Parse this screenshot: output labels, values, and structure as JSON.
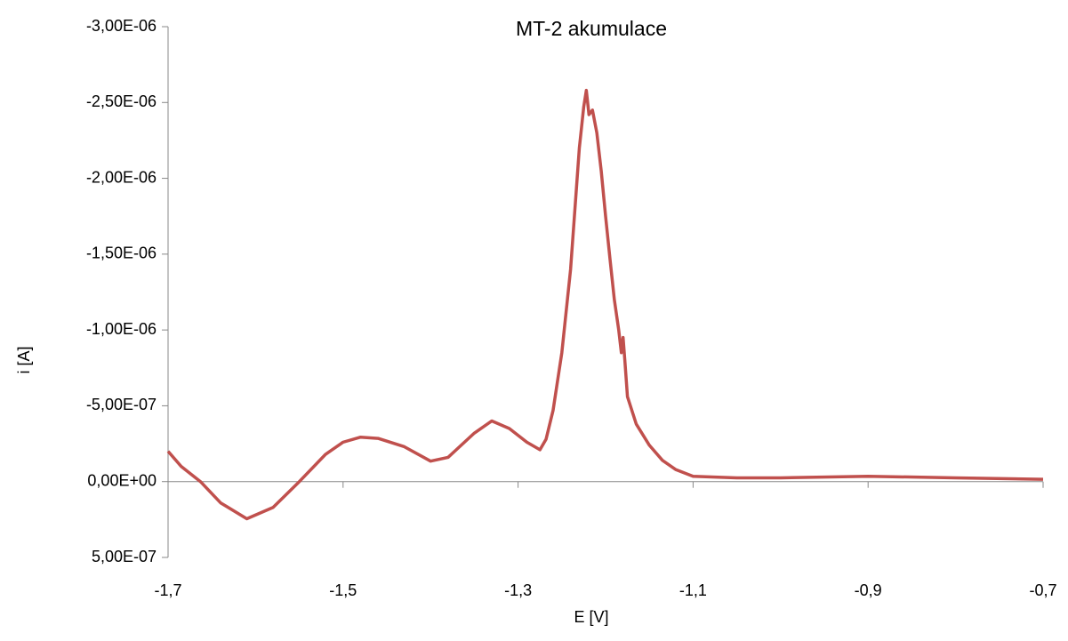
{
  "chart_data": {
    "type": "line",
    "title": "MT-2 akumulace",
    "x_label": "E [V]",
    "y_label": "i [A]",
    "x": [
      -1.7,
      -1.685,
      -1.663,
      -1.64,
      -1.61,
      -1.58,
      -1.55,
      -1.52,
      -1.5,
      -1.48,
      -1.46,
      -1.43,
      -1.4,
      -1.38,
      -1.35,
      -1.33,
      -1.31,
      -1.29,
      -1.275,
      -1.268,
      -1.26,
      -1.25,
      -1.24,
      -1.23,
      -1.225,
      -1.222,
      -1.219,
      -1.215,
      -1.21,
      -1.205,
      -1.2,
      -1.195,
      -1.19,
      -1.185,
      -1.182,
      -1.18,
      -1.178,
      -1.175,
      -1.165,
      -1.15,
      -1.135,
      -1.12,
      -1.1,
      -1.05,
      -1.0,
      -0.9,
      -0.8,
      -0.7
    ],
    "series": [
      {
        "name": "MT-2 akumulace",
        "color": "#c0504d",
        "values": [
          -2e-07,
          -1e-07,
          0,
          1.4e-07,
          2.45e-07,
          1.7e-07,
          0,
          -1.8e-07,
          -2.6e-07,
          -2.93e-07,
          -2.85e-07,
          -2.3e-07,
          -1.35e-07,
          -1.6e-07,
          -3.2e-07,
          -4e-07,
          -3.5e-07,
          -2.6e-07,
          -2.1e-07,
          -2.8e-07,
          -4.7e-07,
          -8.5e-07,
          -1.4e-06,
          -2.2e-06,
          -2.47e-06,
          -2.58e-06,
          -2.42e-06,
          -2.45e-06,
          -2.3e-06,
          -2.05e-06,
          -1.75e-06,
          -1.47e-06,
          -1.2e-06,
          -1e-06,
          -8.5e-07,
          -9.5e-07,
          -8e-07,
          -5.6e-07,
          -3.8e-07,
          -2.4e-07,
          -1.4e-07,
          -8e-08,
          -3.5e-08,
          -2.5e-08,
          -2.5e-08,
          -3.5e-08,
          -2.5e-08,
          -1.5e-08
        ]
      }
    ],
    "xlim": [
      -1.7,
      -0.7
    ],
    "xticks": [
      {
        "value": -1.7,
        "label": "-1,7"
      },
      {
        "value": -1.5,
        "label": "-1,5"
      },
      {
        "value": -1.3,
        "label": "-1,3"
      },
      {
        "value": -1.1,
        "label": "-1,1"
      },
      {
        "value": -0.9,
        "label": "-0,9"
      },
      {
        "value": -0.7,
        "label": "-0,7"
      }
    ],
    "ylim": [
      -3e-06,
      5e-07
    ],
    "yticks": [
      {
        "value": -3e-06,
        "label": "-3,00E-06"
      },
      {
        "value": -2.5e-06,
        "label": "-2,50E-06"
      },
      {
        "value": -2e-06,
        "label": "-2,00E-06"
      },
      {
        "value": -1.5e-06,
        "label": "-1,50E-06"
      },
      {
        "value": -1e-06,
        "label": "-1,00E-06"
      },
      {
        "value": -5e-07,
        "label": "-5,00E-07"
      },
      {
        "value": 0,
        "label": "0,00E+00"
      },
      {
        "value": 5e-07,
        "label": "5,00E-07"
      }
    ],
    "grid": false
  }
}
